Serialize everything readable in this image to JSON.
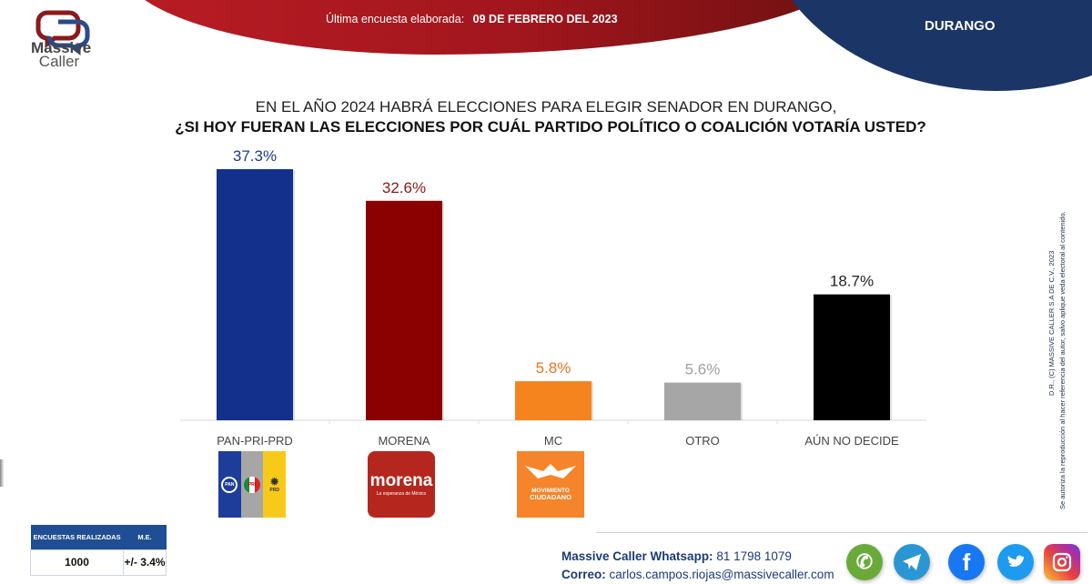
{
  "header": {
    "brand_line1": "Massive",
    "brand_line2": "Caller",
    "survey_label": "Última encuesta elaborada:",
    "survey_date": "09 DE FEBRERO DEL 2023",
    "state": "DURANGO"
  },
  "title": {
    "line1": "EN EL AÑO 2024 HABRÁ ELECCIONES PARA ELEGIR SENADOR EN DURANGO,",
    "line2": "¿SI HOY FUERAN LAS ELECCIONES POR CUÁL PARTIDO POLÍTICO O COALICIÓN  VOTARÍA USTED?"
  },
  "chart_data": {
    "type": "bar",
    "title": "¿SI HOY FUERAN LAS ELECCIONES POR CUÁL PARTIDO POLÍTICO O COALICIÓN VOTARÍA USTED?",
    "categories": [
      "PAN-PRI-PRD",
      "MORENA",
      "MC",
      "OTRO",
      "AÚN NO DECIDE"
    ],
    "values": [
      37.3,
      32.6,
      5.8,
      5.6,
      18.7
    ],
    "data_labels": [
      "37.3%",
      "32.6%",
      "5.8%",
      "5.6%",
      "18.7%"
    ],
    "colors": [
      "#12308c",
      "#8b0000",
      "#f5841f",
      "#a6a6a6",
      "#000000"
    ],
    "label_colors": [
      "#1f3b8a",
      "#8b1a1a",
      "#e8731c",
      "#a0a0a0",
      "#222222"
    ],
    "xlabel": "",
    "ylabel": "",
    "ylim": [
      0,
      40
    ],
    "grid": false,
    "legend": "none"
  },
  "party_logos": {
    "pan": "PAN",
    "pri": "PRI",
    "prd": "PRD",
    "morena_name": "morena",
    "morena_tagline": "La esperanza de México",
    "mc_line1": "MOVIMIENTO",
    "mc_line2": "CIUDADANO"
  },
  "stats_table": {
    "headers": [
      "ENCUESTAS REALIZADAS",
      "M.E."
    ],
    "values": [
      "1000",
      "+/- 3.4%"
    ]
  },
  "footer": {
    "whatsapp_label": "Massive Caller Whatsapp:",
    "whatsapp_number": "81 1798 1079",
    "email_label": "Correo:",
    "email": "carlos.campos.riojas@massivecaller.com",
    "social_icons": [
      "whatsapp-icon",
      "telegram-icon",
      "facebook-icon",
      "twitter-icon",
      "instagram-icon"
    ]
  },
  "copyright": {
    "line1": "D.R., (C) MASSIVE CALLER S.A DE C.V., 2023",
    "line2": "Se autoriza la reproducción al hacer referencia del autor, salvo aplique veda electoral al contenido."
  }
}
